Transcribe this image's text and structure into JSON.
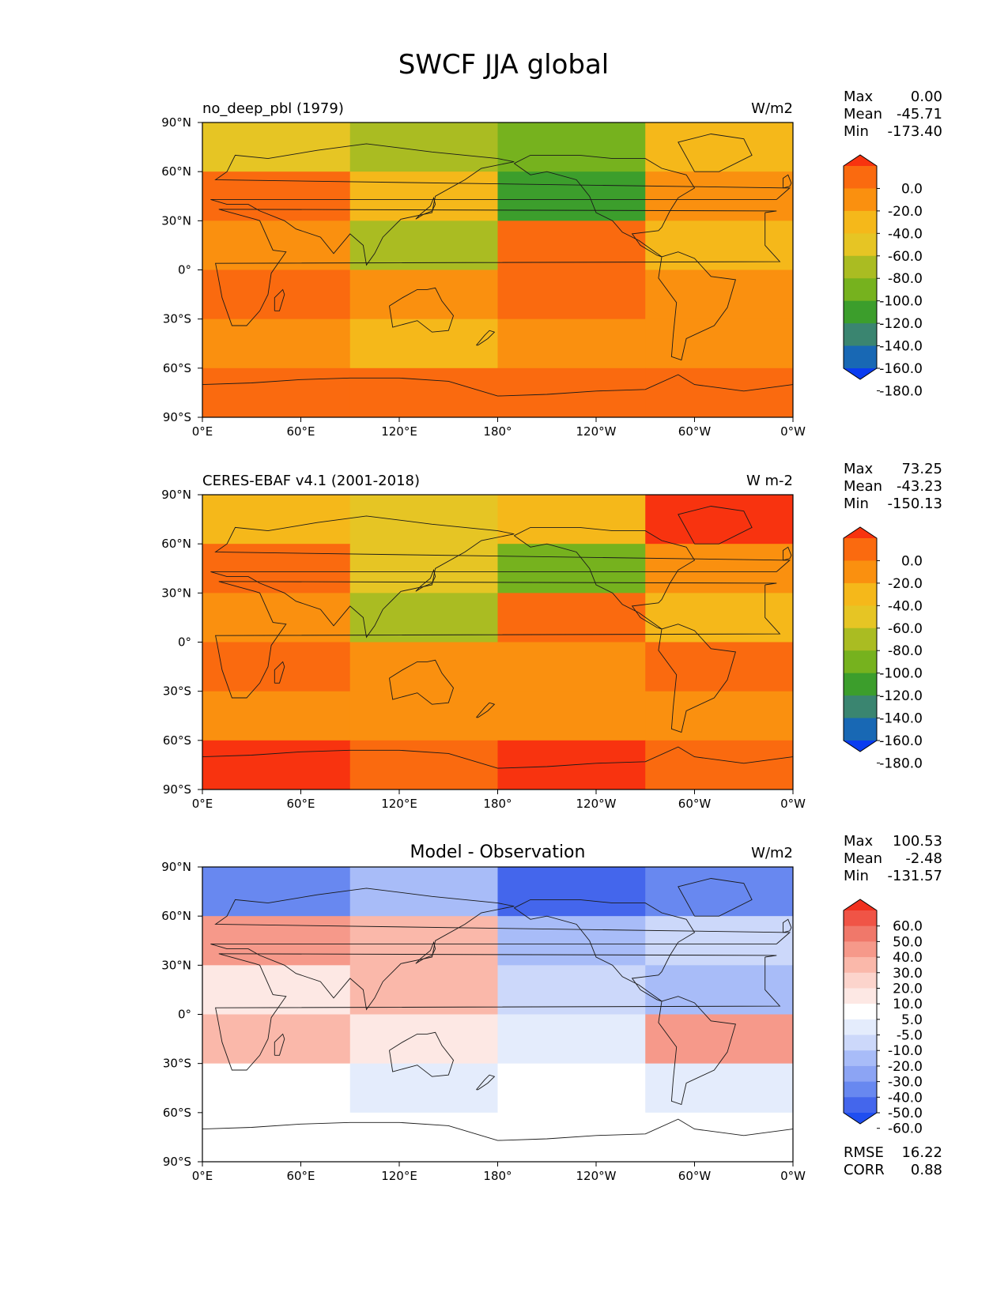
{
  "figure": {
    "title": "SWCF JJA global"
  },
  "chart_data": [
    {
      "type": "heatmap",
      "panel": "test",
      "title_left": "no_deep_pbl (1979)",
      "title_center": "",
      "units": "W/m2",
      "stats": {
        "max": "0.00",
        "mean": "-45.71",
        "min": "-173.40"
      },
      "lon_ticks": [
        "0°E",
        "60°E",
        "120°E",
        "180°",
        "120°W",
        "60°W",
        "0°W"
      ],
      "lat_ticks": [
        "90°N",
        "60°N",
        "30°N",
        "0°",
        "30°S",
        "60°S",
        "90°S"
      ],
      "colorbar": {
        "levels": [
          "0.0",
          "-20.0",
          "-40.0",
          "-60.0",
          "-80.0",
          "-100.0",
          "-120.0",
          "-140.0",
          "-160.0",
          "-180.0"
        ],
        "colors": [
          "#f8330f",
          "#fa6a0f",
          "#fa900f",
          "#f5b81a",
          "#e6c524",
          "#aabc22",
          "#76b21e",
          "#3c9e2c",
          "#3a8570",
          "#1868b4",
          "#0a3cf0"
        ]
      },
      "bands": [
        {
          "lat": [
            60,
            90
          ],
          "colors": [
            "#e6c524",
            "#aabc22",
            "#76b21e",
            "#f5b81a"
          ]
        },
        {
          "lat": [
            30,
            60
          ],
          "colors": [
            "#fa6a0f",
            "#f5b81a",
            "#3c9e2c",
            "#fa900f"
          ]
        },
        {
          "lat": [
            0,
            30
          ],
          "colors": [
            "#fa900f",
            "#aabc22",
            "#fa6a0f",
            "#f5b81a"
          ]
        },
        {
          "lat": [
            -30,
            0
          ],
          "colors": [
            "#fa6a0f",
            "#fa900f",
            "#fa6a0f",
            "#fa900f"
          ]
        },
        {
          "lat": [
            -60,
            -30
          ],
          "colors": [
            "#fa900f",
            "#f5b81a",
            "#fa900f",
            "#fa900f"
          ]
        },
        {
          "lat": [
            -90,
            -60
          ],
          "colors": [
            "#fa6a0f",
            "#fa6a0f",
            "#fa6a0f",
            "#fa6a0f"
          ]
        }
      ]
    },
    {
      "type": "heatmap",
      "panel": "reference",
      "title_left": "CERES-EBAF v4.1 (2001-2018)",
      "title_center": "",
      "units": "W m-2",
      "stats": {
        "max": "73.25",
        "mean": "-43.23",
        "min": "-150.13"
      },
      "lon_ticks": [
        "0°E",
        "60°E",
        "120°E",
        "180°",
        "120°W",
        "60°W",
        "0°W"
      ],
      "lat_ticks": [
        "90°N",
        "60°N",
        "30°N",
        "0°",
        "30°S",
        "60°S",
        "90°S"
      ],
      "colorbar": {
        "levels": [
          "0.0",
          "-20.0",
          "-40.0",
          "-60.0",
          "-80.0",
          "-100.0",
          "-120.0",
          "-140.0",
          "-160.0",
          "-180.0"
        ],
        "colors": [
          "#f8330f",
          "#fa6a0f",
          "#fa900f",
          "#f5b81a",
          "#e6c524",
          "#aabc22",
          "#76b21e",
          "#3c9e2c",
          "#3a8570",
          "#1868b4",
          "#0a3cf0"
        ]
      },
      "bands": [
        {
          "lat": [
            60,
            90
          ],
          "colors": [
            "#f5b81a",
            "#e6c524",
            "#f5b81a",
            "#f8330f"
          ]
        },
        {
          "lat": [
            30,
            60
          ],
          "colors": [
            "#fa6a0f",
            "#e6c524",
            "#76b21e",
            "#fa900f"
          ]
        },
        {
          "lat": [
            0,
            30
          ],
          "colors": [
            "#fa900f",
            "#aabc22",
            "#fa6a0f",
            "#f5b81a"
          ]
        },
        {
          "lat": [
            -30,
            0
          ],
          "colors": [
            "#fa6a0f",
            "#fa900f",
            "#fa900f",
            "#fa6a0f"
          ]
        },
        {
          "lat": [
            -60,
            -30
          ],
          "colors": [
            "#fa900f",
            "#fa900f",
            "#fa900f",
            "#fa900f"
          ]
        },
        {
          "lat": [
            -90,
            -60
          ],
          "colors": [
            "#f8330f",
            "#fa6a0f",
            "#f8330f",
            "#fa6a0f"
          ]
        }
      ]
    },
    {
      "type": "heatmap",
      "panel": "difference",
      "title_left": "",
      "title_center": "Model - Observation",
      "units": "W/m2",
      "stats": {
        "max": "100.53",
        "mean": "-2.48",
        "min": "-131.57"
      },
      "extra_stats": {
        "rmse": "16.22",
        "corr": "0.88"
      },
      "lon_ticks": [
        "0°E",
        "60°E",
        "120°E",
        "180°",
        "120°W",
        "60°W",
        "0°W"
      ],
      "lat_ticks": [
        "90°N",
        "60°N",
        "30°N",
        "0°",
        "30°S",
        "60°S",
        "90°S"
      ],
      "colorbar": {
        "levels": [
          "60.0",
          "50.0",
          "40.0",
          "30.0",
          "20.0",
          "10.0",
          "5.0",
          "-5.0",
          "-10.0",
          "-20.0",
          "-30.0",
          "-40.0",
          "-50.0",
          "-60.0"
        ],
        "colors": [
          "#f0301e",
          "#f05446",
          "#f0786a",
          "#f6998a",
          "#fab8aa",
          "#fcd4cc",
          "#fde8e4",
          "#ffffff",
          "#e4ecfc",
          "#ccd8fa",
          "#a8bcf8",
          "#8ca4f4",
          "#6888f0",
          "#4466ec",
          "#1f4ef0"
        ]
      },
      "bands": [
        {
          "lat": [
            60,
            90
          ],
          "colors": [
            "#6888f0",
            "#a8bcf8",
            "#4466ec",
            "#6888f0"
          ]
        },
        {
          "lat": [
            30,
            60
          ],
          "colors": [
            "#f6998a",
            "#fab8aa",
            "#a8bcf8",
            "#ccd8fa"
          ]
        },
        {
          "lat": [
            0,
            30
          ],
          "colors": [
            "#fde8e4",
            "#fab8aa",
            "#ccd8fa",
            "#a8bcf8"
          ]
        },
        {
          "lat": [
            -30,
            0
          ],
          "colors": [
            "#fab8aa",
            "#fde8e4",
            "#e4ecfc",
            "#f6998a"
          ]
        },
        {
          "lat": [
            -60,
            -30
          ],
          "colors": [
            "#ffffff",
            "#e4ecfc",
            "#ffffff",
            "#e4ecfc"
          ]
        },
        {
          "lat": [
            -90,
            -60
          ],
          "colors": [
            "#ffffff",
            "#ffffff",
            "#ffffff",
            "#ffffff"
          ]
        }
      ]
    }
  ]
}
